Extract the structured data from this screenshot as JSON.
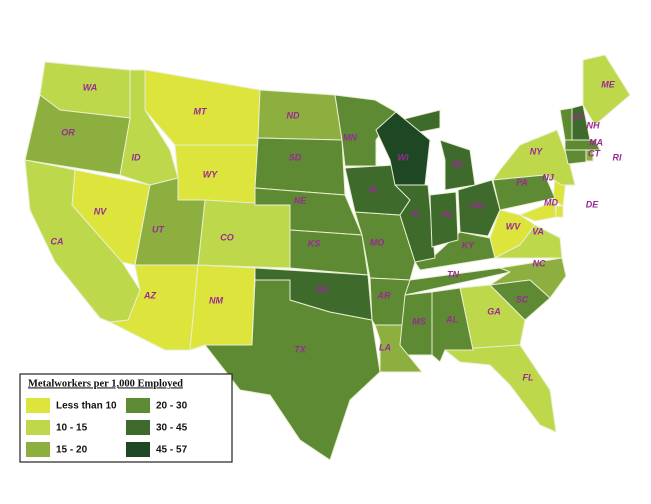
{
  "legend": {
    "title": "Metalworkers per 1,000 Employed",
    "classes": [
      {
        "label": "Less than 10",
        "color": "#dde43c",
        "states": [
          "MT",
          "WY",
          "NV",
          "AZ",
          "NM",
          "WV",
          "NJ",
          "DE",
          "MD"
        ]
      },
      {
        "label": "10 - 15",
        "color": "#bed84c",
        "states": [
          "WA",
          "ID",
          "CA",
          "CO",
          "NY",
          "ME",
          "VA",
          "GA",
          "FL"
        ]
      },
      {
        "label": "15 - 20",
        "color": "#8daf3f",
        "states": [
          "OR",
          "UT",
          "ND",
          "LA",
          "NC",
          "RI"
        ]
      },
      {
        "label": "20 - 30",
        "color": "#5e8a33",
        "states": [
          "SD",
          "NE",
          "KS",
          "MN",
          "MO",
          "AR",
          "TX",
          "MS",
          "AL",
          "TN",
          "KY",
          "SC",
          "PA",
          "VT",
          "MA",
          "CT"
        ]
      },
      {
        "label": "30 - 45",
        "color": "#3e6a2c",
        "states": [
          "IA",
          "IL",
          "IN",
          "OH",
          "MI",
          "OK",
          "NH"
        ]
      },
      {
        "label": "45 - 57",
        "color": "#1e4824",
        "states": [
          "WI"
        ]
      }
    ]
  }
}
